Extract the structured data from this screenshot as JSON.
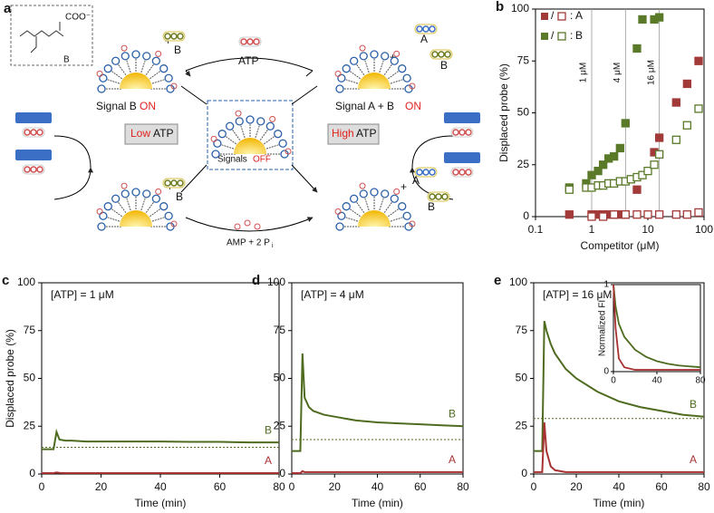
{
  "diagram": {
    "panel_label": "a",
    "carboxylate": "COO⁻",
    "inset_ligand": "B",
    "plus": "+",
    "ligand_b": "B",
    "ligand_a": "A",
    "atp": "ATP",
    "signal_b": "Signal B",
    "signal_ab": "Signal A + B",
    "on": "ON",
    "signals": "Signals",
    "off": "OFF",
    "low": "Low",
    "high": "High",
    "amp": "AMP + 2 P",
    "amp_sub": "i"
  },
  "chart_data": [
    {
      "type": "scatter",
      "label": "b",
      "xlabel": "Competitor (μM)",
      "ylabel": "Displaced probe (%)",
      "log_x": true,
      "xlim": [
        0.1,
        100
      ],
      "xticks": [
        0.1,
        1,
        10,
        100
      ],
      "ylim": [
        0,
        100
      ],
      "yticks": [
        0,
        25,
        50,
        75,
        100
      ],
      "legend_separator": "/",
      "legend_colon": ":",
      "vlines": [
        {
          "value": 1,
          "label": "1 μM"
        },
        {
          "value": 4,
          "label": "4 μM"
        },
        {
          "value": 16,
          "label": "16 μM"
        }
      ],
      "series": [
        {
          "name": "A",
          "color": "#a33a3a",
          "filled": true,
          "x": [
            0.4,
            1,
            1.3,
            1.6,
            2,
            2.5,
            3.2,
            4,
            6.4,
            13,
            16,
            32,
            50,
            80
          ],
          "values": [
            1,
            1,
            1,
            1,
            1,
            1,
            1,
            1,
            13,
            31,
            38,
            55,
            64,
            75
          ]
        },
        {
          "name": "A",
          "color": "#a33a3a",
          "filled": false,
          "x": [
            1,
            1.6,
            2.5,
            4,
            6.4,
            10,
            16,
            32,
            50,
            80
          ],
          "values": [
            0,
            0,
            1,
            1,
            1,
            1,
            1,
            1,
            1,
            2
          ]
        },
        {
          "name": "B",
          "color": "#5a7a2a",
          "filled": true,
          "x": [
            0.4,
            0.8,
            1,
            1.3,
            1.6,
            2,
            2.5,
            3.2,
            4,
            6.4,
            8,
            13,
            16
          ],
          "values": [
            14,
            16,
            20,
            22,
            25,
            28,
            29,
            33,
            45,
            81,
            95,
            95,
            96
          ]
        },
        {
          "name": "B",
          "color": "#5a7a2a",
          "filled": false,
          "x": [
            0.4,
            0.8,
            1,
            1.3,
            1.6,
            2,
            2.5,
            3.2,
            4,
            5,
            6.4,
            8,
            10,
            13,
            16,
            32,
            50,
            80
          ],
          "values": [
            13,
            14,
            14,
            15,
            15,
            16,
            16,
            17,
            17,
            18,
            19,
            20,
            22,
            25,
            30,
            37,
            44,
            52
          ]
        }
      ]
    },
    {
      "type": "line",
      "label": "c",
      "annotation": "[ATP] = 1 μM",
      "xlabel": "Time (min)",
      "ylabel": "Displaced probe (%)",
      "xlim": [
        0,
        80
      ],
      "xticks": [
        0,
        20,
        40,
        60,
        80
      ],
      "ylim": [
        0,
        100
      ],
      "yticks": [
        0,
        25,
        50,
        75,
        100
      ],
      "hline": 14,
      "x": [
        0,
        2,
        4,
        5,
        6,
        8,
        10,
        15,
        20,
        30,
        40,
        50,
        60,
        70,
        80
      ],
      "series": [
        {
          "name": "B",
          "color": "#4e6b1f",
          "values": [
            13,
            13,
            13,
            22,
            18,
            17.5,
            17.5,
            17,
            17,
            17,
            17,
            16.8,
            16.8,
            16.5,
            16.5
          ]
        },
        {
          "name": "A",
          "color": "#a83232",
          "values": [
            0.5,
            0.5,
            0.5,
            0.8,
            0.6,
            0.5,
            0.5,
            0.5,
            0.5,
            0.5,
            0.5,
            0.5,
            0.5,
            0.5,
            0.5
          ]
        }
      ]
    },
    {
      "type": "line",
      "label": "d",
      "annotation": "[ATP] = 4 μM",
      "xlabel": "Time (min)",
      "xlim": [
        0,
        80
      ],
      "xticks": [
        0,
        20,
        40,
        60,
        80
      ],
      "ylim": [
        0,
        100
      ],
      "yticks": [
        0,
        25,
        50,
        75,
        100
      ],
      "hline": 18,
      "x": [
        0,
        2,
        4,
        5,
        6,
        8,
        10,
        15,
        20,
        30,
        40,
        50,
        60,
        70,
        80
      ],
      "series": [
        {
          "name": "B",
          "color": "#4e6b1f",
          "values": [
            12,
            12,
            12,
            63,
            40,
            35,
            33,
            31,
            30,
            28,
            27,
            26.5,
            26,
            25.5,
            25
          ]
        },
        {
          "name": "A",
          "color": "#a83232",
          "values": [
            0.5,
            0.5,
            0.5,
            1.5,
            1,
            1,
            1,
            1,
            1,
            1,
            1,
            1,
            1,
            1,
            1
          ]
        }
      ]
    },
    {
      "type": "line",
      "label": "e",
      "annotation": "[ATP] = 16 μM",
      "xlabel": "Time (min)",
      "xlim": [
        0,
        80
      ],
      "xticks": [
        0,
        20,
        40,
        60,
        80
      ],
      "ylim": [
        0,
        100
      ],
      "yticks": [
        0,
        25,
        50,
        75,
        100
      ],
      "hline": 29,
      "x": [
        0,
        2,
        4,
        5,
        6,
        8,
        10,
        15,
        20,
        30,
        40,
        50,
        60,
        70,
        80
      ],
      "series": [
        {
          "name": "B",
          "color": "#4e6b1f",
          "values": [
            12,
            12,
            12,
            80,
            75,
            68,
            63,
            55,
            50,
            43,
            38,
            35,
            33,
            31,
            30
          ]
        },
        {
          "name": "A",
          "color": "#a83232",
          "values": [
            1,
            1,
            1,
            27,
            12,
            4,
            2,
            1,
            1,
            1,
            1,
            1,
            1,
            1,
            1
          ]
        }
      ],
      "inset": {
        "ylabel": "Normalized FI",
        "xlim": [
          0,
          80
        ],
        "ylim": [
          0,
          1
        ],
        "xticks": [
          0,
          40,
          80
        ],
        "yticks": [
          0,
          1
        ],
        "x": [
          0,
          2,
          5,
          10,
          20,
          30,
          40,
          50,
          60,
          70,
          80
        ],
        "series": [
          {
            "color": "#4e6b1f",
            "values": [
              1,
              0.75,
              0.55,
              0.4,
              0.25,
              0.17,
              0.12,
              0.09,
              0.07,
              0.06,
              0.05
            ]
          },
          {
            "color": "#a83232",
            "values": [
              1,
              0.5,
              0.15,
              0.05,
              0.02,
              0.02,
              0.02,
              0.02,
              0.02,
              0.02,
              0.02
            ]
          }
        ]
      }
    }
  ]
}
